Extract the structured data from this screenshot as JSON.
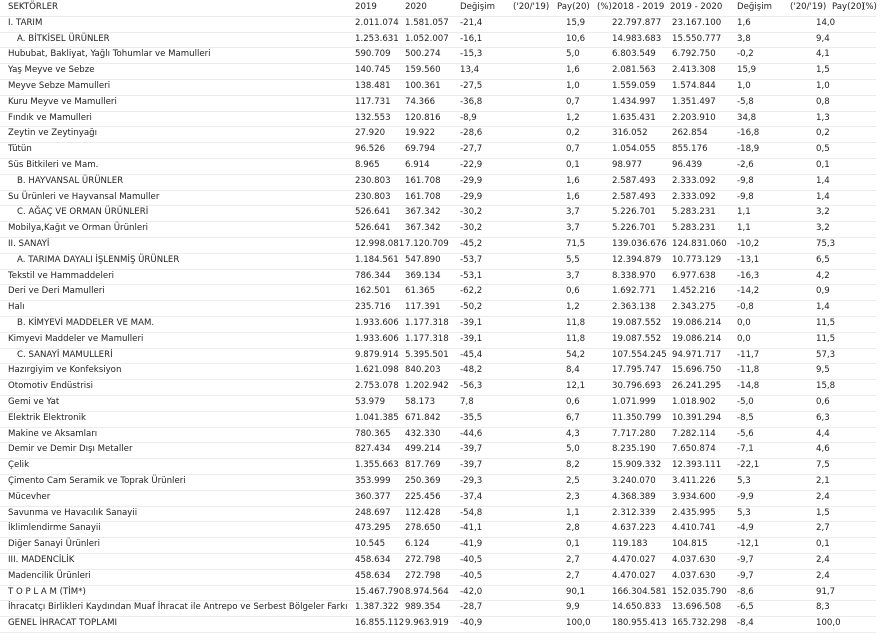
{
  "table": {
    "header": [
      "SEKTÖRLER",
      "2019",
      "2020",
      "Değişim",
      "('20/'19)",
      "Pay(20)",
      "(%)",
      "2018 - 2019",
      "2019 - 2020",
      "Değişim",
      "('20/'19)",
      "Pay(20)",
      "(%)"
    ],
    "rows": [
      [
        "I. TARIM",
        "2.011.074",
        "1.581.057",
        "-21,4",
        "15,9",
        "22.797.877",
        "23.167.100",
        "1,6",
        "14,0"
      ],
      [
        "A. BİTKİSEL ÜRÜNLER",
        "1.253.631",
        "1.052.007",
        "-16,1",
        "10,6",
        "14.983.683",
        "15.550.777",
        "3,8",
        "9,4"
      ],
      [
        "Hububat, Bakliyat, Yağlı Tohumlar ve Mamulleri",
        "590.709",
        "500.274",
        "-15,3",
        "5,0",
        "6.803.549",
        "6.792.750",
        "-0,2",
        "4,1"
      ],
      [
        "Yaş Meyve ve Sebze",
        "140.745",
        "159.560",
        "13,4",
        "1,6",
        "2.081.563",
        "2.413.308",
        "15,9",
        "1,5"
      ],
      [
        "Meyve Sebze Mamulleri",
        "138.481",
        "100.361",
        "-27,5",
        "1,0",
        "1.559.059",
        "1.574.844",
        "1,0",
        "1,0"
      ],
      [
        "Kuru Meyve ve Mamulleri",
        "117.731",
        "74.366",
        "-36,8",
        "0,7",
        "1.434.997",
        "1.351.497",
        "-5,8",
        "0,8"
      ],
      [
        "Fındık ve Mamulleri",
        "132.553",
        "120.816",
        "-8,9",
        "1,2",
        "1.635.431",
        "2.203.910",
        "34,8",
        "1,3"
      ],
      [
        "Zeytin ve Zeytinyağı",
        "27.920",
        "19.922",
        "-28,6",
        "0,2",
        "316.052",
        "262.854",
        "-16,8",
        "0,2"
      ],
      [
        "Tütün",
        "96.526",
        "69.794",
        "-27,7",
        "0,7",
        "1.054.055",
        "855.176",
        "-18,9",
        "0,5"
      ],
      [
        "Süs Bitkileri ve Mam.",
        "8.965",
        "6.914",
        "-22,9",
        "0,1",
        "98.977",
        "96.439",
        "-2,6",
        "0,1"
      ],
      [
        "B. HAYVANSAL ÜRÜNLER",
        "230.803",
        "161.708",
        "-29,9",
        "1,6",
        "2.587.493",
        "2.333.092",
        "-9,8",
        "1,4"
      ],
      [
        "Su Ürünleri ve Hayvansal Mamuller",
        "230.803",
        "161.708",
        "-29,9",
        "1,6",
        "2.587.493",
        "2.333.092",
        "-9,8",
        "1,4"
      ],
      [
        "C. AĞAÇ VE ORMAN ÜRÜNLERİ",
        "526.641",
        "367.342",
        "-30,2",
        "3,7",
        "5.226.701",
        "5.283.231",
        "1,1",
        "3,2"
      ],
      [
        "Mobilya,Kağıt ve Orman Ürünleri",
        "526.641",
        "367.342",
        "-30,2",
        "3,7",
        "5.226.701",
        "5.283.231",
        "1,1",
        "3,2"
      ],
      [
        "II. SANAYİ",
        "12.998.081",
        "7.120.709",
        "-45,2",
        "71,5",
        "139.036.676",
        "124.831.060",
        "-10,2",
        "75,3"
      ],
      [
        "A. TARIMA DAYALI İŞLENMİŞ ÜRÜNLER",
        "1.184.561",
        "547.890",
        "-53,7",
        "5,5",
        "12.394.879",
        "10.773.129",
        "-13,1",
        "6,5"
      ],
      [
        "Tekstil ve Hammaddeleri",
        "786.344",
        "369.134",
        "-53,1",
        "3,7",
        "8.338.970",
        "6.977.638",
        "-16,3",
        "4,2"
      ],
      [
        "Deri ve Deri Mamulleri",
        "162.501",
        "61.365",
        "-62,2",
        "0,6",
        "1.692.771",
        "1.452.216",
        "-14,2",
        "0,9"
      ],
      [
        "Halı",
        "235.716",
        "117.391",
        "-50,2",
        "1,2",
        "2.363.138",
        "2.343.275",
        "-0,8",
        "1,4"
      ],
      [
        "B. KİMYEVİ MADDELER VE MAM.",
        "1.933.606",
        "1.177.318",
        "-39,1",
        "11,8",
        "19.087.552",
        "19.086.214",
        "0,0",
        "11,5"
      ],
      [
        "Kimyevi Maddeler ve Mamulleri",
        "1.933.606",
        "1.177.318",
        "-39,1",
        "11,8",
        "19.087.552",
        "19.086.214",
        "0,0",
        "11,5"
      ],
      [
        "C. SANAYİ MAMULLERİ",
        "9.879.914",
        "5.395.501",
        "-45,4",
        "54,2",
        "107.554.245",
        "94.971.717",
        "-11,7",
        "57,3"
      ],
      [
        "Hazırgiyim ve Konfeksiyon",
        "1.621.098",
        "840.203",
        "-48,2",
        "8,4",
        "17.795.747",
        "15.696.750",
        "-11,8",
        "9,5"
      ],
      [
        "Otomotiv Endüstrisi",
        "2.753.078",
        "1.202.942",
        "-56,3",
        "12,1",
        "30.796.693",
        "26.241.295",
        "-14,8",
        "15,8"
      ],
      [
        "Gemi ve Yat",
        "53.979",
        "58.173",
        "7,8",
        "0,6",
        "1.071.999",
        "1.018.902",
        "-5,0",
        "0,6"
      ],
      [
        "Elektrik Elektronik",
        "1.041.385",
        "671.842",
        "-35,5",
        "6,7",
        "11.350.799",
        "10.391.294",
        "-8,5",
        "6,3"
      ],
      [
        "Makine ve Aksamları",
        "780.365",
        "432.330",
        "-44,6",
        "4,3",
        "7.717.280",
        "7.282.114",
        "-5,6",
        "4,4"
      ],
      [
        "Demir ve Demir Dışı Metaller",
        "827.434",
        "499.214",
        "-39,7",
        "5,0",
        "8.235.190",
        "7.650.874",
        "-7,1",
        "4,6"
      ],
      [
        "Çelik",
        "1.355.663",
        "817.769",
        "-39,7",
        "8,2",
        "15.909.332",
        "12.393.111",
        "-22,1",
        "7,5"
      ],
      [
        "Çimento Cam Seramik ve Toprak Ürünleri",
        "353.999",
        "250.369",
        "-29,3",
        "2,5",
        "3.240.070",
        "3.411.226",
        "5,3",
        "2,1"
      ],
      [
        "Mücevher",
        "360.377",
        "225.456",
        "-37,4",
        "2,3",
        "4.368.389",
        "3.934.600",
        "-9,9",
        "2,4"
      ],
      [
        "Savunma ve Havacılık Sanayii",
        "248.697",
        "112.428",
        "-54,8",
        "1,1",
        "2.312.339",
        "2.435.995",
        "5,3",
        "1,5"
      ],
      [
        "İklimlendirme Sanayii",
        "473.295",
        "278.650",
        "-41,1",
        "2,8",
        "4.637.223",
        "4.410.741",
        "-4,9",
        "2,7"
      ],
      [
        "Diğer Sanayi Ürünleri",
        "10.545",
        "6.124",
        "-41,9",
        "0,1",
        "119.183",
        "104.815",
        "-12,1",
        "0,1"
      ],
      [
        "III. MADENCİLİK",
        "458.634",
        "272.798",
        "-40,5",
        "2,7",
        "4.470.027",
        "4.037.630",
        "-9,7",
        "2,4"
      ],
      [
        "Madencilik Ürünleri",
        "458.634",
        "272.798",
        "-40,5",
        "2,7",
        "4.470.027",
        "4.037.630",
        "-9,7",
        "2,4"
      ],
      [
        "T O P L A M (TİM*)",
        "15.467.790",
        "8.974.564",
        "-42,0",
        "90,1",
        "166.304.581",
        "152.035.790",
        "-8,6",
        "91,7"
      ],
      [
        "İhracatçı Birlikleri Kaydından Muaf İhracat ile Antrepo ve Serbest Bölgeler Farkı",
        "1.387.322",
        "989.354",
        "-28,7",
        "9,9",
        "14.650.833",
        "13.696.508",
        "-6,5",
        "8,3"
      ],
      [
        "GENEL İHRACAT TOPLAMI",
        "16.855.112",
        "9.963.919",
        "-40,9",
        "100,0",
        "180.955.413",
        "165.732.298",
        "-8,4",
        "100,0"
      ]
    ]
  }
}
